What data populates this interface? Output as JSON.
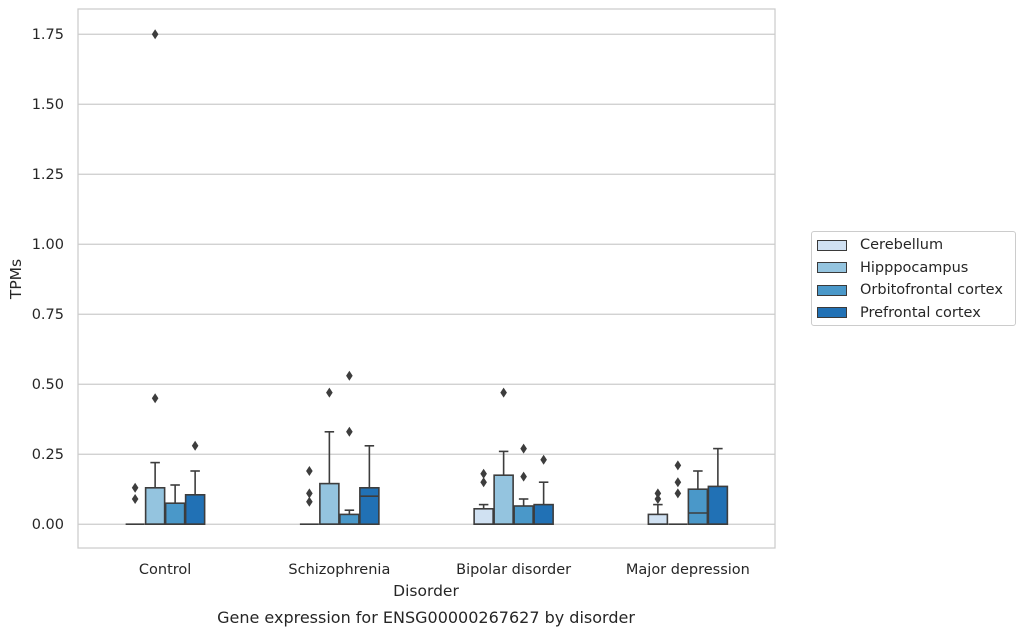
{
  "chart_data": {
    "type": "box",
    "title": "Gene expression for ENSG00000267627 by disorder",
    "xlabel": "Disorder",
    "ylabel": "TPMs",
    "ylim": [
      -0.085,
      1.84
    ],
    "yticks": [
      "0.00",
      "0.25",
      "0.50",
      "0.75",
      "1.00",
      "1.25",
      "1.50",
      "1.75"
    ],
    "categories": [
      "Control",
      "Schizophrenia",
      "Bipolar disorder",
      "Major depression"
    ],
    "grid": "horizontal",
    "legend_position": "right",
    "series": [
      {
        "name": "Cerebellum",
        "color": "#d0e1f2",
        "boxes": [
          {
            "q1": 0.0,
            "median": 0.0,
            "q3": 0.0,
            "whisker_low": 0.0,
            "whisker_high": 0.0,
            "outliers": [
              0.09,
              0.13
            ]
          },
          {
            "q1": 0.0,
            "median": 0.0,
            "q3": 0.0,
            "whisker_low": 0.0,
            "whisker_high": 0.0,
            "outliers": [
              0.08,
              0.11,
              0.19
            ]
          },
          {
            "q1": 0.0,
            "median": 0.0,
            "q3": 0.055,
            "whisker_low": 0.0,
            "whisker_high": 0.07,
            "outliers": [
              0.15,
              0.18
            ]
          },
          {
            "q1": 0.0,
            "median": 0.0,
            "q3": 0.035,
            "whisker_low": 0.0,
            "whisker_high": 0.07,
            "outliers": [
              0.09,
              0.11
            ]
          }
        ]
      },
      {
        "name": "Hipppocampus",
        "color": "#94c4df",
        "boxes": [
          {
            "q1": 0.0,
            "median": 0.0,
            "q3": 0.13,
            "whisker_low": 0.0,
            "whisker_high": 0.22,
            "outliers": [
              0.45,
              1.75
            ]
          },
          {
            "q1": 0.0,
            "median": 0.0,
            "q3": 0.145,
            "whisker_low": 0.0,
            "whisker_high": 0.33,
            "outliers": [
              0.47
            ]
          },
          {
            "q1": 0.0,
            "median": 0.0,
            "q3": 0.175,
            "whisker_low": 0.0,
            "whisker_high": 0.26,
            "outliers": [
              0.47
            ]
          },
          {
            "q1": 0.0,
            "median": 0.0,
            "q3": 0.0,
            "whisker_low": 0.0,
            "whisker_high": 0.0,
            "outliers": [
              0.11,
              0.15,
              0.21
            ]
          }
        ]
      },
      {
        "name": "Orbitofrontal cortex",
        "color": "#4a98c9",
        "boxes": [
          {
            "q1": 0.0,
            "median": 0.0,
            "q3": 0.075,
            "whisker_low": 0.0,
            "whisker_high": 0.14,
            "outliers": []
          },
          {
            "q1": 0.0,
            "median": 0.0,
            "q3": 0.035,
            "whisker_low": 0.0,
            "whisker_high": 0.05,
            "outliers": [
              0.33,
              0.53
            ]
          },
          {
            "q1": 0.0,
            "median": 0.0,
            "q3": 0.065,
            "whisker_low": 0.0,
            "whisker_high": 0.09,
            "outliers": [
              0.17,
              0.27
            ]
          },
          {
            "q1": 0.0,
            "median": 0.04,
            "q3": 0.125,
            "whisker_low": 0.0,
            "whisker_high": 0.19,
            "outliers": []
          }
        ]
      },
      {
        "name": "Prefrontal cortex",
        "color": "#2171b5",
        "boxes": [
          {
            "q1": 0.0,
            "median": 0.0,
            "q3": 0.105,
            "whisker_low": 0.0,
            "whisker_high": 0.19,
            "outliers": [
              0.28
            ]
          },
          {
            "q1": 0.0,
            "median": 0.1,
            "q3": 0.13,
            "whisker_low": 0.0,
            "whisker_high": 0.28,
            "outliers": []
          },
          {
            "q1": 0.0,
            "median": 0.0,
            "q3": 0.07,
            "whisker_low": 0.0,
            "whisker_high": 0.15,
            "outliers": [
              0.23
            ]
          },
          {
            "q1": 0.0,
            "median": 0.0,
            "q3": 0.135,
            "whisker_low": 0.0,
            "whisker_high": 0.27,
            "outliers": []
          }
        ]
      }
    ]
  }
}
